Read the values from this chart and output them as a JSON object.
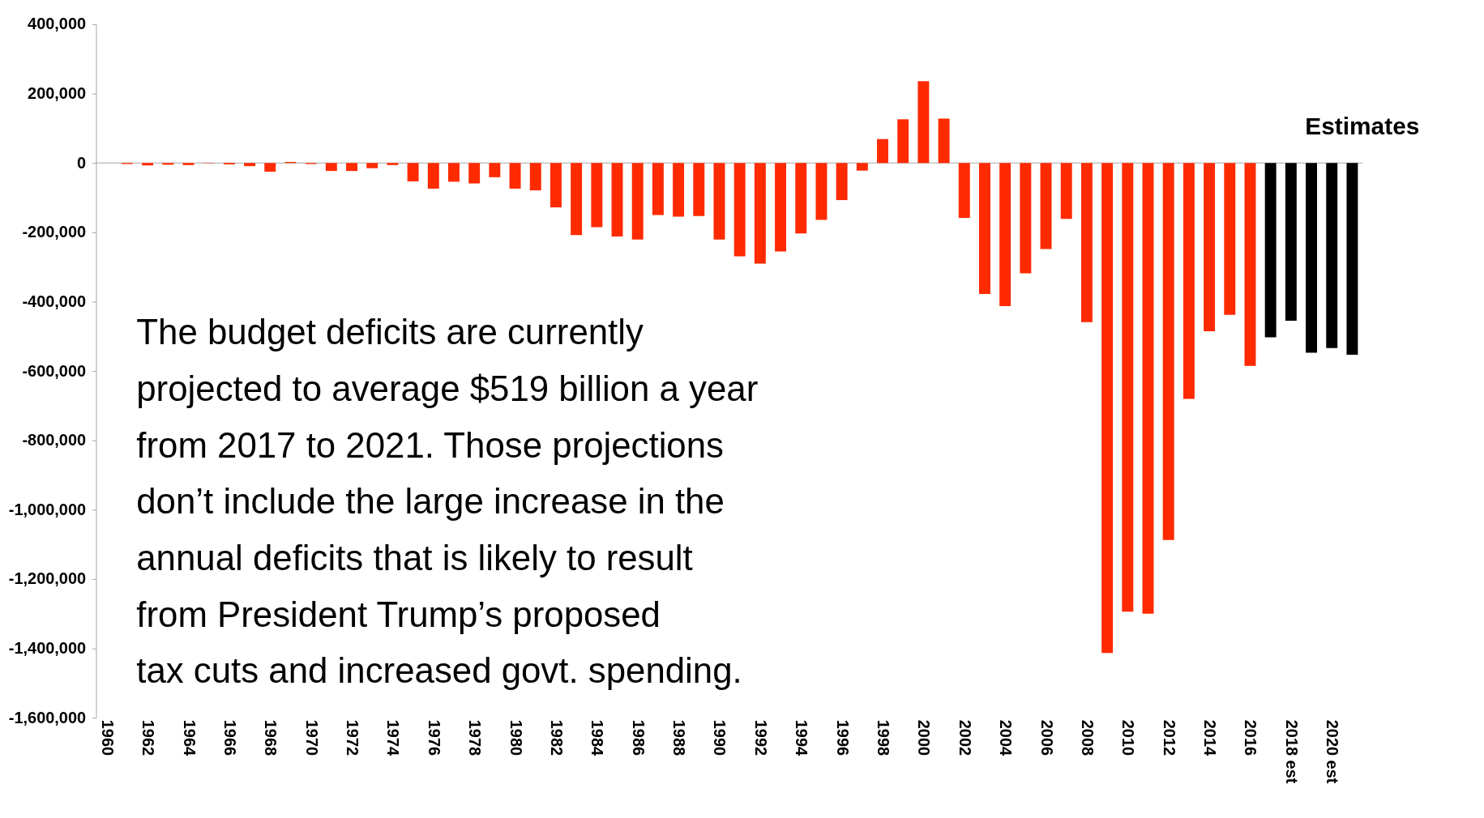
{
  "chart_data": {
    "type": "bar",
    "categories": [
      "1960",
      null,
      "1962",
      null,
      "1964",
      null,
      "1966",
      null,
      "1968",
      null,
      "1970",
      null,
      "1972",
      null,
      "1974",
      null,
      "1976",
      null,
      "1978",
      null,
      "1980",
      null,
      "1982",
      null,
      "1984",
      null,
      "1986",
      null,
      "1988",
      null,
      "1990",
      null,
      "1992",
      null,
      "1994",
      null,
      "1996",
      null,
      "1998",
      null,
      "2000",
      null,
      "2002",
      null,
      "2004",
      null,
      "2006",
      null,
      "2008",
      null,
      "2010",
      null,
      "2012",
      null,
      "2014",
      null,
      "2016",
      null,
      "2018 est",
      null,
      "2020 est",
      null
    ],
    "values": [
      0,
      -3000,
      -7000,
      -5000,
      -6000,
      -1000,
      -4000,
      -9000,
      -25000,
      3000,
      -3000,
      -23000,
      -23000,
      -15000,
      -6000,
      -53000,
      -74000,
      -54000,
      -59000,
      -41000,
      -74000,
      -79000,
      -128000,
      -208000,
      -185000,
      -212000,
      -221000,
      -150000,
      -155000,
      -153000,
      -221000,
      -269000,
      -290000,
      -255000,
      -203000,
      -164000,
      -107000,
      -22000,
      69000,
      126000,
      236000,
      128000,
      -158000,
      -378000,
      -413000,
      -318000,
      -248000,
      -161000,
      -459000,
      -1413000,
      -1294000,
      -1300000,
      -1087000,
      -680000,
      -485000,
      -438000,
      -585000,
      -503000,
      -455000,
      -547000,
      -534000,
      -553000
    ],
    "colors": [
      "#ff2a00",
      "#ff2a00",
      "#ff2a00",
      "#ff2a00",
      "#ff2a00",
      "#ff2a00",
      "#ff2a00",
      "#ff2a00",
      "#ff2a00",
      "#ff2a00",
      "#ff2a00",
      "#ff2a00",
      "#ff2a00",
      "#ff2a00",
      "#ff2a00",
      "#ff2a00",
      "#ff2a00",
      "#ff2a00",
      "#ff2a00",
      "#ff2a00",
      "#ff2a00",
      "#ff2a00",
      "#ff2a00",
      "#ff2a00",
      "#ff2a00",
      "#ff2a00",
      "#ff2a00",
      "#ff2a00",
      "#ff2a00",
      "#ff2a00",
      "#ff2a00",
      "#ff2a00",
      "#ff2a00",
      "#ff2a00",
      "#ff2a00",
      "#ff2a00",
      "#ff2a00",
      "#ff2a00",
      "#ff2a00",
      "#ff2a00",
      "#ff2a00",
      "#ff2a00",
      "#ff2a00",
      "#ff2a00",
      "#ff2a00",
      "#ff2a00",
      "#ff2a00",
      "#ff2a00",
      "#ff2a00",
      "#ff2a00",
      "#ff2a00",
      "#ff2a00",
      "#ff2a00",
      "#ff2a00",
      "#ff2a00",
      "#ff2a00",
      "#ff2a00",
      "#000000",
      "#000000",
      "#000000",
      "#000000",
      "#000000"
    ],
    "ylim": [
      -1600000,
      400000
    ],
    "yticks": [
      {
        "value": -1600000,
        "label": "-1,600,000"
      },
      {
        "value": -1400000,
        "label": "-1,400,000"
      },
      {
        "value": -1200000,
        "label": "-1,200,000"
      },
      {
        "value": -1000000,
        "label": "-1,000,000"
      },
      {
        "value": -800000,
        "label": "-800,000"
      },
      {
        "value": -600000,
        "label": "-600,000"
      },
      {
        "value": -400000,
        "label": "-400,000"
      },
      {
        "value": -200000,
        "label": "-200,000"
      },
      0,
      {
        "value": 200000,
        "label": "200,000"
      },
      {
        "value": 400000,
        "label": "400,000"
      }
    ],
    "ref_lines": [
      {
        "axis": "y",
        "value": 0,
        "color": "#a6a6a6"
      }
    ],
    "annotations": [
      "Estimates",
      "The budget deficits are currently\nprojected to average $519 billion a year\nfrom 2017 to 2021.  Those projections\ndon’t include the large increase in the\nannual deficits that is likely to result\nfrom President Trump’s proposed\ntax cuts and increased govt. spending."
    ],
    "grid": false
  }
}
